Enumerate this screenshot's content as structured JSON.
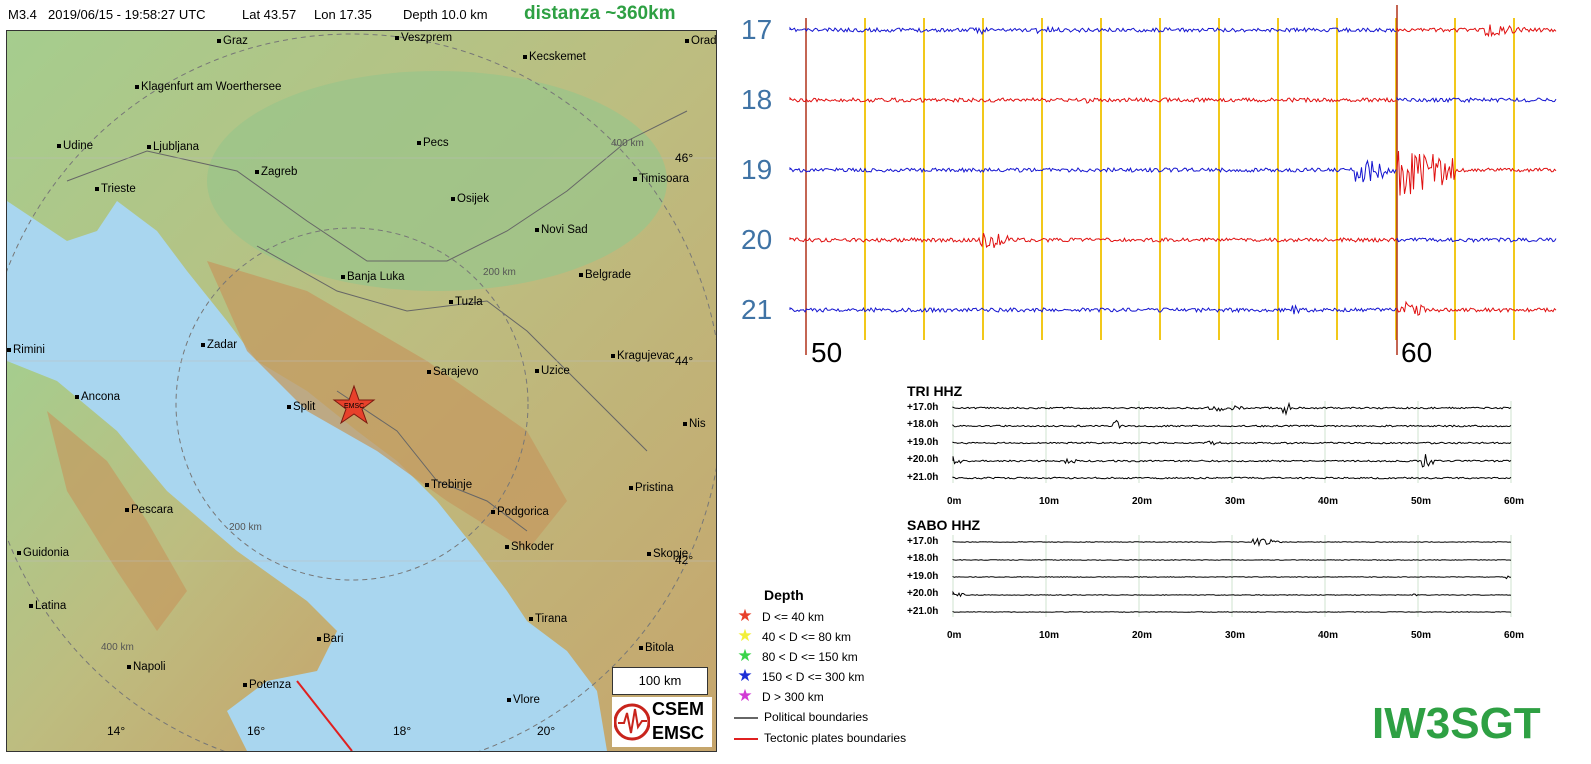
{
  "header": {
    "magnitude": "M3.4",
    "datetime": "2019/06/15 - 19:58:27 UTC",
    "lat": "Lat 43.57",
    "lon": "Lon 17.35",
    "depth": "Depth  10.0 km",
    "distance": "distanza ~360km"
  },
  "map": {
    "cities": [
      {
        "name": "Graz"
      },
      {
        "name": "Veszprem"
      },
      {
        "name": "Kecskemet"
      },
      {
        "name": "Orad"
      },
      {
        "name": "Klagenfurt am Woerthersee"
      },
      {
        "name": "Udine"
      },
      {
        "name": "Ljubljana"
      },
      {
        "name": "Pecs"
      },
      {
        "name": "Zagreb"
      },
      {
        "name": "Timisoara"
      },
      {
        "name": "Trieste"
      },
      {
        "name": "Osijek"
      },
      {
        "name": "Novi Sad"
      },
      {
        "name": "Banja Luka"
      },
      {
        "name": "Belgrade"
      },
      {
        "name": "Tuzla"
      },
      {
        "name": "Rimini"
      },
      {
        "name": "Zadar"
      },
      {
        "name": "Kragujevac"
      },
      {
        "name": "Sarajevo"
      },
      {
        "name": "Uzice"
      },
      {
        "name": "Ancona"
      },
      {
        "name": "Split"
      },
      {
        "name": "Nis"
      },
      {
        "name": "Trebinje"
      },
      {
        "name": "Pristina"
      },
      {
        "name": "Pescara"
      },
      {
        "name": "Podgorica"
      },
      {
        "name": "Shkoder"
      },
      {
        "name": "Guidonia"
      },
      {
        "name": "Skopje"
      },
      {
        "name": "Latina"
      },
      {
        "name": "Bari"
      },
      {
        "name": "Tirana"
      },
      {
        "name": "Napoli"
      },
      {
        "name": "Bitola"
      },
      {
        "name": "Potenza"
      },
      {
        "name": "Vlore"
      }
    ],
    "ring_labels": [
      "400 km",
      "200 km",
      "200 km",
      "400 km"
    ],
    "lat_labels": [
      "46°",
      "44°",
      "42°"
    ],
    "lon_labels": [
      "14°",
      "16°",
      "18°",
      "20°"
    ],
    "epicenter_label": "EMSC",
    "scale_bar": "100 km",
    "logo_top": "CSEM",
    "logo_bottom": "EMSC",
    "colors": {
      "sea": "#a9d6ef",
      "land_low": "#9cc48a",
      "land_high": "#c4a26a",
      "epicenter": "#e8412b"
    }
  },
  "legend": {
    "title": "Depth",
    "items": [
      {
        "label": "D <= 40 km",
        "color": "#e8412b",
        "icon": "star-icon"
      },
      {
        "label": "40 < D <= 80 km",
        "color": "#f2ef3a",
        "icon": "star-icon"
      },
      {
        "label": "80 < D <= 150 km",
        "color": "#3bd44a",
        "icon": "star-icon"
      },
      {
        "label": "150 < D <= 300 km",
        "color": "#1d2fd6",
        "icon": "star-icon"
      },
      {
        "label": "D > 300 km",
        "color": "#d23bd4",
        "icon": "star-icon"
      }
    ],
    "lines": [
      {
        "label": "Political boundaries",
        "color": "#666666"
      },
      {
        "label": "Tectonic plates boundaries",
        "color": "#e02020"
      }
    ]
  },
  "drum": {
    "hours": [
      "17",
      "18",
      "19",
      "20",
      "21"
    ],
    "minute_labels": [
      "50",
      "60"
    ],
    "trace_colors": [
      "#1515d0",
      "#e01010"
    ],
    "grid_color": "#f2c81a"
  },
  "stations": [
    {
      "name": "TRI HHZ",
      "rows": [
        "+17.0h",
        "+18.0h",
        "+19.0h",
        "+20.0h",
        "+21.0h"
      ],
      "axis": [
        "0m",
        "10m",
        "20m",
        "30m",
        "40m",
        "50m",
        "60m"
      ]
    },
    {
      "name": "SABO HHZ",
      "rows": [
        "+17.0h",
        "+18.0h",
        "+19.0h",
        "+20.0h",
        "+21.0h"
      ],
      "axis": [
        "0m",
        "10m",
        "20m",
        "30m",
        "40m",
        "50m",
        "60m"
      ]
    }
  ],
  "callsign": "IW3SGT"
}
